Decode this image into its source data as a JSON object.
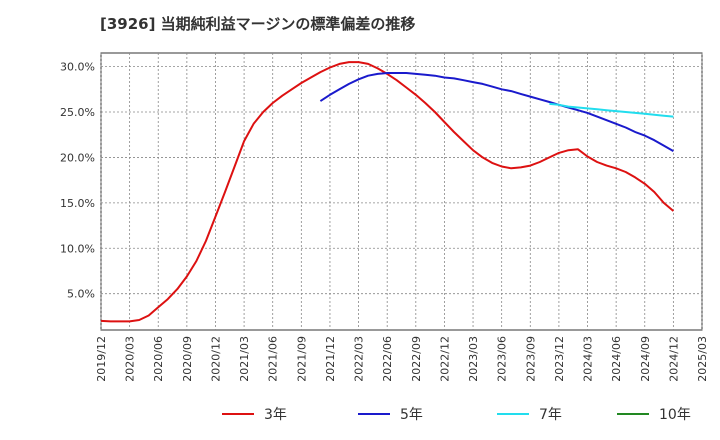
{
  "chart_data": {
    "type": "line",
    "title": "[3926]  当期純利益マージンの標準偏差の推移",
    "xlabel": "",
    "ylabel": "",
    "x_ticks": [
      "2019/12",
      "2020/03",
      "2020/06",
      "2020/09",
      "2020/12",
      "2021/03",
      "2021/06",
      "2021/09",
      "2021/12",
      "2022/03",
      "2022/06",
      "2022/09",
      "2022/12",
      "2023/03",
      "2023/06",
      "2023/09",
      "2023/12",
      "2024/03",
      "2024/06",
      "2024/09",
      "2024/12",
      "2025/03"
    ],
    "y_ticks": [
      "5.0%",
      "10.0%",
      "15.0%",
      "20.0%",
      "25.0%",
      "30.0%"
    ],
    "ylim": [
      1.0,
      31.5
    ],
    "grid": true,
    "legend_position": "bottom",
    "series": [
      {
        "name": "3年",
        "color": "#dd1111",
        "values": [
          [
            "2019/12",
            2.0
          ],
          [
            "2020/01",
            1.95
          ],
          [
            "2020/02",
            1.95
          ],
          [
            "2020/03",
            1.95
          ],
          [
            "2020/04",
            2.1
          ],
          [
            "2020/05",
            2.6
          ],
          [
            "2020/06",
            3.5
          ],
          [
            "2020/07",
            4.4
          ],
          [
            "2020/08",
            5.5
          ],
          [
            "2020/09",
            6.9
          ],
          [
            "2020/10",
            8.6
          ],
          [
            "2020/11",
            10.8
          ],
          [
            "2020/12",
            13.5
          ],
          [
            "2021/01",
            16.2
          ],
          [
            "2021/02",
            19.0
          ],
          [
            "2021/03",
            21.8
          ],
          [
            "2021/04",
            23.7
          ],
          [
            "2021/05",
            25.0
          ],
          [
            "2021/06",
            26.0
          ],
          [
            "2021/07",
            26.8
          ],
          [
            "2021/08",
            27.5
          ],
          [
            "2021/09",
            28.2
          ],
          [
            "2021/10",
            28.8
          ],
          [
            "2021/11",
            29.4
          ],
          [
            "2021/12",
            29.9
          ],
          [
            "2022/01",
            30.3
          ],
          [
            "2022/02",
            30.5
          ],
          [
            "2022/03",
            30.5
          ],
          [
            "2022/04",
            30.3
          ],
          [
            "2022/05",
            29.8
          ],
          [
            "2022/06",
            29.2
          ],
          [
            "2022/07",
            28.5
          ],
          [
            "2022/08",
            27.7
          ],
          [
            "2022/09",
            26.9
          ],
          [
            "2022/10",
            26.0
          ],
          [
            "2022/11",
            25.0
          ],
          [
            "2022/12",
            23.9
          ],
          [
            "2023/01",
            22.8
          ],
          [
            "2023/02",
            21.8
          ],
          [
            "2023/03",
            20.8
          ],
          [
            "2023/04",
            20.0
          ],
          [
            "2023/05",
            19.4
          ],
          [
            "2023/06",
            19.0
          ],
          [
            "2023/07",
            18.8
          ],
          [
            "2023/08",
            18.9
          ],
          [
            "2023/09",
            19.1
          ],
          [
            "2023/10",
            19.5
          ],
          [
            "2023/11",
            20.0
          ],
          [
            "2023/12",
            20.5
          ],
          [
            "2024/01",
            20.8
          ],
          [
            "2024/02",
            20.9
          ],
          [
            "2024/03",
            20.1
          ],
          [
            "2024/04",
            19.5
          ],
          [
            "2024/05",
            19.1
          ],
          [
            "2024/06",
            18.8
          ],
          [
            "2024/07",
            18.4
          ],
          [
            "2024/08",
            17.8
          ],
          [
            "2024/09",
            17.1
          ],
          [
            "2024/10",
            16.2
          ],
          [
            "2024/11",
            15.0
          ],
          [
            "2024/12",
            14.1
          ]
        ]
      },
      {
        "name": "5年",
        "color": "#1a1acc",
        "values": [
          [
            "2021/11",
            26.2
          ],
          [
            "2021/12",
            26.9
          ],
          [
            "2022/01",
            27.5
          ],
          [
            "2022/02",
            28.1
          ],
          [
            "2022/03",
            28.6
          ],
          [
            "2022/04",
            29.0
          ],
          [
            "2022/05",
            29.2
          ],
          [
            "2022/06",
            29.3
          ],
          [
            "2022/07",
            29.3
          ],
          [
            "2022/08",
            29.3
          ],
          [
            "2022/09",
            29.2
          ],
          [
            "2022/10",
            29.1
          ],
          [
            "2022/11",
            29.0
          ],
          [
            "2022/12",
            28.8
          ],
          [
            "2023/01",
            28.7
          ],
          [
            "2023/02",
            28.5
          ],
          [
            "2023/03",
            28.3
          ],
          [
            "2023/04",
            28.1
          ],
          [
            "2023/05",
            27.8
          ],
          [
            "2023/06",
            27.5
          ],
          [
            "2023/07",
            27.3
          ],
          [
            "2023/08",
            27.0
          ],
          [
            "2023/09",
            26.7
          ],
          [
            "2023/10",
            26.4
          ],
          [
            "2023/11",
            26.1
          ],
          [
            "2023/12",
            25.8
          ],
          [
            "2024/01",
            25.5
          ],
          [
            "2024/02",
            25.2
          ],
          [
            "2024/03",
            24.9
          ],
          [
            "2024/04",
            24.5
          ],
          [
            "2024/05",
            24.1
          ],
          [
            "2024/06",
            23.7
          ],
          [
            "2024/07",
            23.3
          ],
          [
            "2024/08",
            22.8
          ],
          [
            "2024/09",
            22.4
          ],
          [
            "2024/10",
            21.9
          ],
          [
            "2024/11",
            21.3
          ],
          [
            "2024/12",
            20.7
          ]
        ]
      },
      {
        "name": "7年",
        "color": "#22ddee",
        "values": [
          [
            "2023/11",
            25.9
          ],
          [
            "2023/12",
            25.8
          ],
          [
            "2024/01",
            25.6
          ],
          [
            "2024/02",
            25.5
          ],
          [
            "2024/03",
            25.4
          ],
          [
            "2024/04",
            25.3
          ],
          [
            "2024/05",
            25.2
          ],
          [
            "2024/06",
            25.1
          ],
          [
            "2024/07",
            25.0
          ],
          [
            "2024/08",
            24.9
          ],
          [
            "2024/09",
            24.8
          ],
          [
            "2024/10",
            24.7
          ],
          [
            "2024/11",
            24.6
          ],
          [
            "2024/12",
            24.5
          ]
        ]
      },
      {
        "name": "10年",
        "color": "#228822",
        "values": []
      }
    ]
  }
}
